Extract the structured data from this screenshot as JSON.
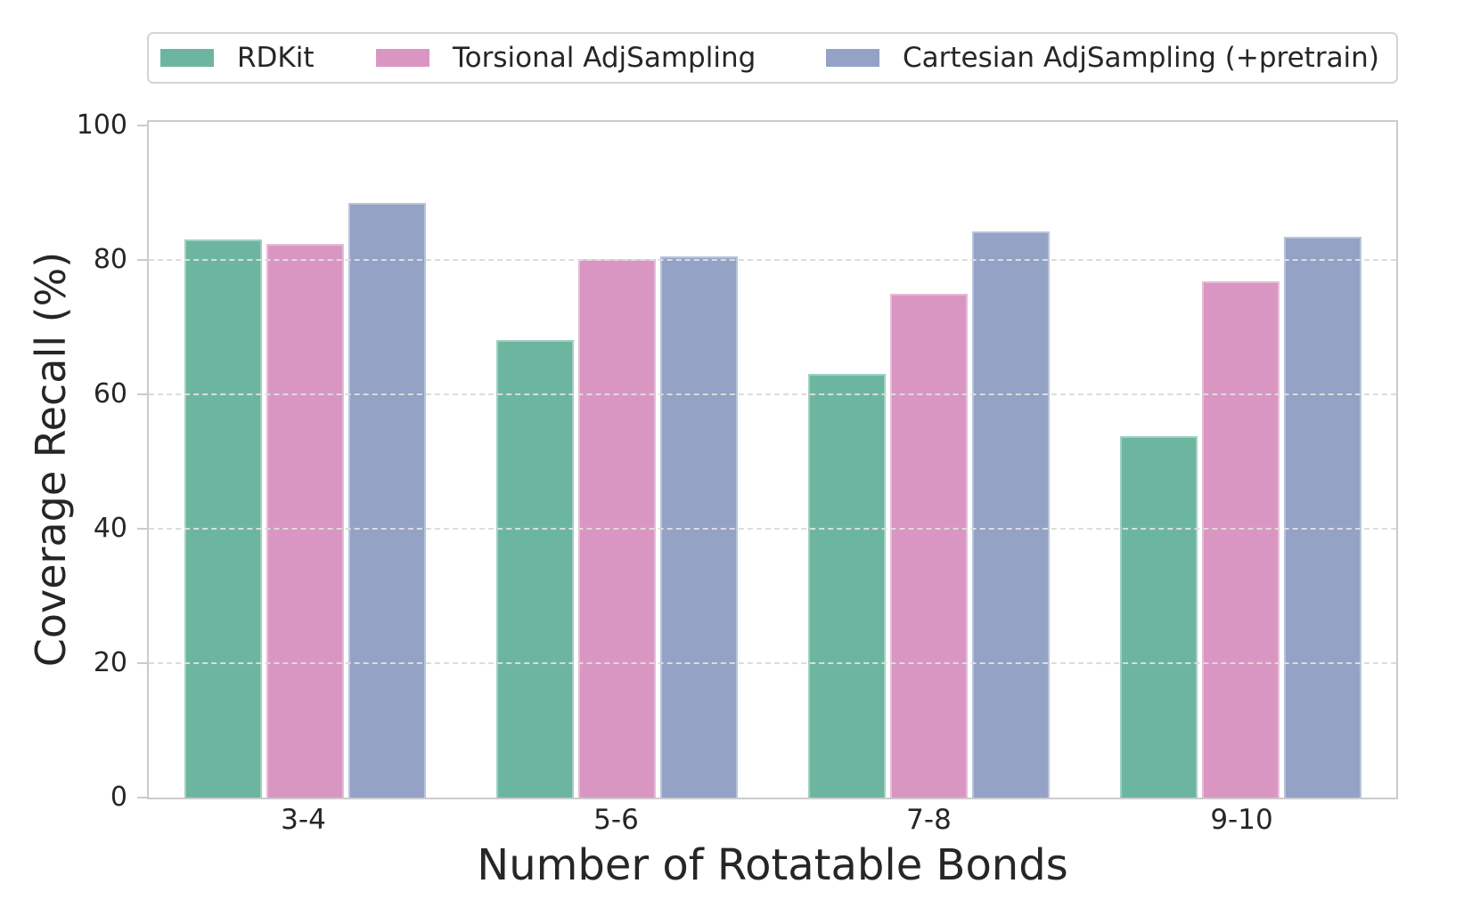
{
  "chart_data": {
    "type": "bar",
    "title": "",
    "xlabel": "Number of Rotatable Bonds",
    "ylabel": "Coverage Recall (%)",
    "categories": [
      "3-4",
      "5-6",
      "7-8",
      "9-10"
    ],
    "series": [
      {
        "name": "RDKit",
        "color": "#6cb6a0",
        "values": [
          83.0,
          68.0,
          63.0,
          53.8
        ]
      },
      {
        "name": "Torsional AdjSampling",
        "color": "#da96c2",
        "values": [
          82.4,
          80.1,
          74.9,
          76.8
        ]
      },
      {
        "name": "Cartesian AdjSampling (+pretrain)",
        "color": "#94a2c6",
        "values": [
          88.4,
          80.5,
          84.2,
          83.4
        ]
      }
    ],
    "ylim": [
      0,
      100.5
    ],
    "yticks": [
      0,
      20,
      40,
      60,
      80,
      100
    ],
    "grid": "horizontal-dashed",
    "legend_position": "top-expanded",
    "axis_frame_color": "#cbcbcb",
    "gridline_color": "#dcdcdc",
    "text_color": "#262626"
  }
}
